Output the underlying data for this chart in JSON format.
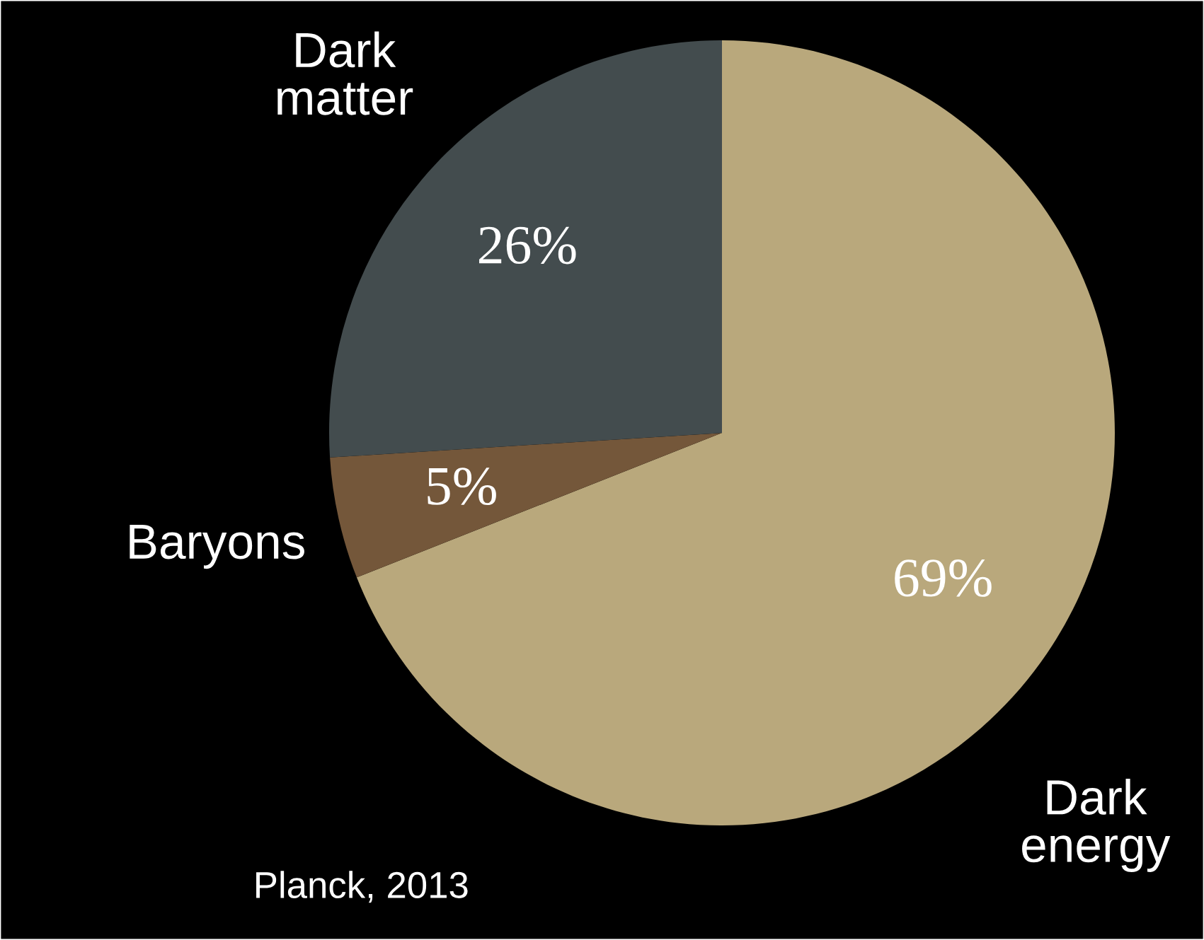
{
  "chart_data": {
    "type": "pie",
    "categories": [
      "Dark energy",
      "Baryons",
      "Dark matter"
    ],
    "values": [
      69,
      5,
      26
    ],
    "value_labels": [
      "69%",
      "5%",
      "26%"
    ],
    "colors": [
      "#b9a87c",
      "#74573a",
      "#434c4e"
    ],
    "annotations": [
      "Planck, 2013"
    ]
  }
}
